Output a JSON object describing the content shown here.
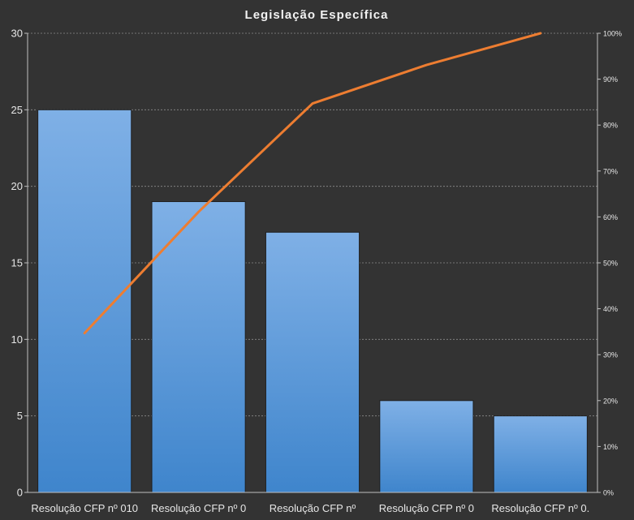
{
  "chart_data": {
    "type": "bar",
    "title": "Legislação Específica",
    "categories": [
      "Resolução CFP nº 010",
      "Resolução CFP nº 0",
      "Resolução CFP nº",
      "Resolução CFP nº 0",
      "Resolução CFP nº 0."
    ],
    "series": [
      {
        "type": "bar",
        "axis": "left",
        "values": [
          25,
          19,
          17,
          6,
          5
        ]
      },
      {
        "type": "line",
        "axis": "right",
        "values": [
          34.7,
          61.1,
          84.7,
          93.1,
          100
        ]
      }
    ],
    "ylim": [
      0,
      30
    ],
    "y_ticks": [
      "0",
      "5",
      "10",
      "15",
      "20",
      "25",
      "30"
    ],
    "y2lim": [
      0,
      100
    ],
    "y2_ticks": [
      "0%",
      "10%",
      "20%",
      "30%",
      "40%",
      "50%",
      "60%",
      "70%",
      "80%",
      "90%",
      "100%"
    ],
    "grid": true,
    "legend": "none",
    "colors": {
      "background": "#333333",
      "bar_top": "#7fb0e6",
      "bar_bottom": "#3f85cc",
      "line": "#ed7d31",
      "text": "#e6e6e6"
    }
  }
}
